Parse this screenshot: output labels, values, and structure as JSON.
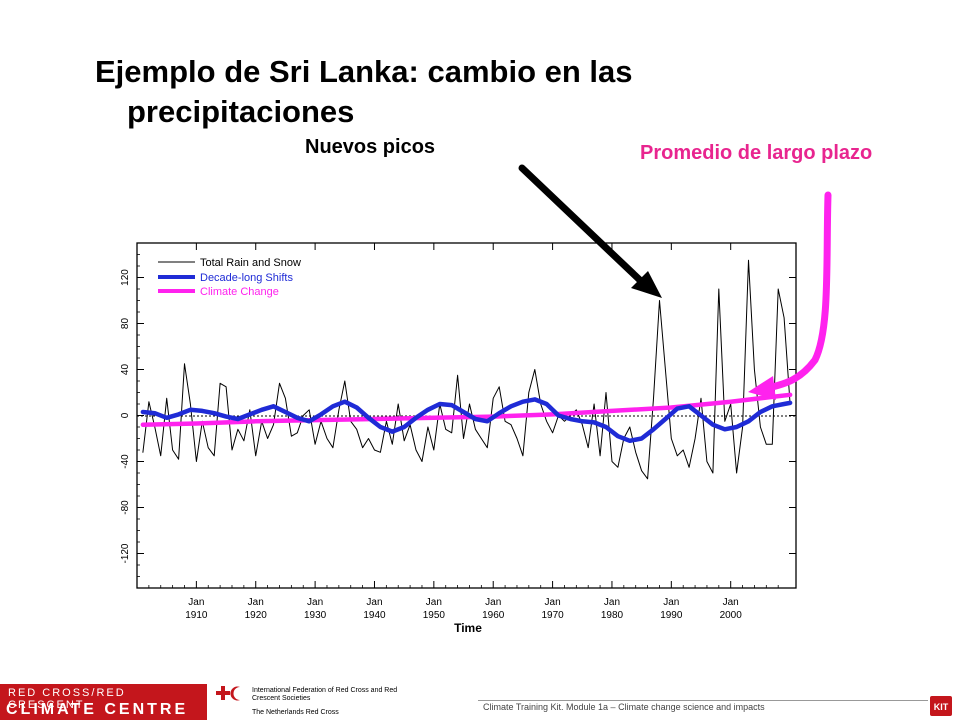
{
  "slide": {
    "title_line1": "Ejemplo de Sri Lanka: cambio en las",
    "title_line2": "precipitaciones",
    "annotation_peaks": "Nuevos picos",
    "annotation_mean": "Promedio de largo plazo"
  },
  "colors": {
    "total": "#000000",
    "decade": "#1f2bd6",
    "climate": "#ff22ee",
    "arrow_black": "#000000",
    "arrow_pink": "#ff22ee",
    "annotation_pink": "#e8258f",
    "brand_red": "#c4161c"
  },
  "chart_data": {
    "type": "line",
    "xlabel": "Time",
    "ylabel": "",
    "xlim": [
      1900,
      2011
    ],
    "ylim": [
      -150,
      150
    ],
    "yticks": [
      120,
      80,
      40,
      0,
      -40,
      -80,
      -120
    ],
    "ytick_labels": [
      "120",
      "80",
      "40",
      "0",
      "-40",
      "-80",
      "-120"
    ],
    "xticks": [
      1910,
      1920,
      1930,
      1940,
      1950,
      1960,
      1970,
      1980,
      1990,
      2000
    ],
    "xtick_labels_top": [
      "Jan",
      "Jan",
      "Jan",
      "Jan",
      "Jan",
      "Jan",
      "Jan",
      "Jan",
      "Jan",
      "Jan"
    ],
    "xtick_labels_bottom": [
      "1910",
      "1920",
      "1930",
      "1940",
      "1950",
      "1960",
      "1970",
      "1980",
      "1990",
      "2000"
    ],
    "legend_position": "top-left",
    "series": [
      {
        "name": "Total Rain and Snow",
        "x": [
          1901,
          1902,
          1903,
          1904,
          1905,
          1906,
          1907,
          1908,
          1909,
          1910,
          1911,
          1912,
          1913,
          1914,
          1915,
          1916,
          1917,
          1918,
          1919,
          1920,
          1921,
          1922,
          1923,
          1924,
          1925,
          1926,
          1927,
          1928,
          1929,
          1930,
          1931,
          1932,
          1933,
          1934,
          1935,
          1936,
          1937,
          1938,
          1939,
          1940,
          1941,
          1942,
          1943,
          1944,
          1945,
          1946,
          1947,
          1948,
          1949,
          1950,
          1951,
          1952,
          1953,
          1954,
          1955,
          1956,
          1957,
          1958,
          1959,
          1960,
          1961,
          1962,
          1963,
          1964,
          1965,
          1966,
          1967,
          1968,
          1969,
          1970,
          1971,
          1972,
          1973,
          1974,
          1975,
          1976,
          1977,
          1978,
          1979,
          1980,
          1981,
          1982,
          1983,
          1984,
          1985,
          1986,
          1987,
          1988,
          1989,
          1990,
          1991,
          1992,
          1993,
          1994,
          1995,
          1996,
          1997,
          1998,
          1999,
          2000,
          2001,
          2002,
          2003,
          2004,
          2005,
          2006,
          2007,
          2008,
          2009,
          2010
        ],
        "values": [
          -32,
          12,
          -10,
          -35,
          15,
          -30,
          -38,
          45,
          10,
          -40,
          -5,
          -28,
          -35,
          28,
          25,
          -30,
          -12,
          -22,
          5,
          -35,
          -5,
          -20,
          -8,
          28,
          15,
          -18,
          -15,
          0,
          5,
          -25,
          -5,
          -20,
          -28,
          5,
          30,
          -5,
          -12,
          -28,
          -20,
          -30,
          -32,
          -5,
          -25,
          10,
          -22,
          -8,
          -30,
          -40,
          -10,
          -30,
          10,
          -12,
          -15,
          35,
          -20,
          10,
          -12,
          -20,
          -28,
          15,
          25,
          -5,
          -8,
          -20,
          -35,
          20,
          40,
          10,
          -5,
          -15,
          0,
          -5,
          0,
          5,
          -8,
          -28,
          10,
          -35,
          20,
          -40,
          -45,
          -20,
          -10,
          -32,
          -48,
          -55,
          15,
          100,
          40,
          -20,
          -35,
          -30,
          -45,
          -20,
          15,
          -40,
          -50,
          110,
          -5,
          10,
          -50,
          -10,
          135,
          40,
          -10,
          -25,
          -25,
          110,
          85,
          10
        ],
        "color": "#000000"
      },
      {
        "name": "Decade-long Shifts",
        "x": [
          1901,
          1903,
          1905,
          1907,
          1909,
          1911,
          1913,
          1915,
          1917,
          1919,
          1921,
          1923,
          1925,
          1927,
          1929,
          1931,
          1933,
          1935,
          1937,
          1939,
          1941,
          1943,
          1945,
          1947,
          1949,
          1951,
          1953,
          1955,
          1957,
          1959,
          1961,
          1963,
          1965,
          1967,
          1969,
          1971,
          1973,
          1975,
          1977,
          1979,
          1981,
          1983,
          1985,
          1987,
          1989,
          1991,
          1993,
          1995,
          1997,
          1999,
          2001,
          2003,
          2005,
          2007,
          2009,
          2010
        ],
        "values": [
          3,
          2,
          -2,
          1,
          5,
          4,
          2,
          -1,
          -3,
          1,
          5,
          8,
          3,
          -2,
          -5,
          1,
          8,
          12,
          7,
          -2,
          -10,
          -14,
          -10,
          -2,
          5,
          10,
          9,
          3,
          -3,
          -5,
          2,
          8,
          12,
          14,
          10,
          0,
          -3,
          -5,
          -6,
          -10,
          -18,
          -22,
          -20,
          -12,
          -3,
          6,
          8,
          0,
          -8,
          -12,
          -10,
          -5,
          3,
          8,
          10,
          11
        ],
        "color": "#1f2bd6"
      },
      {
        "name": "Climate Change",
        "x": [
          1901,
          1910,
          1920,
          1930,
          1940,
          1950,
          1960,
          1970,
          1980,
          1990,
          2000,
          2010
        ],
        "values": [
          -8,
          -7,
          -5,
          -4,
          -3,
          -2,
          -1,
          1,
          4,
          7,
          12,
          18
        ],
        "color": "#ff22ee"
      }
    ]
  },
  "footer": {
    "brand_top": "RED CROSS/RED CRESCENT",
    "brand_bottom": "CLIMATE CENTRE",
    "ifrc_text": "International Federation of Red Cross and Red Crescent Societies",
    "nl_text": "The Netherlands Red Cross",
    "module_text": "Climate Training Kit. Module 1a –  Climate change science and impacts",
    "kit_label": "KIT"
  }
}
